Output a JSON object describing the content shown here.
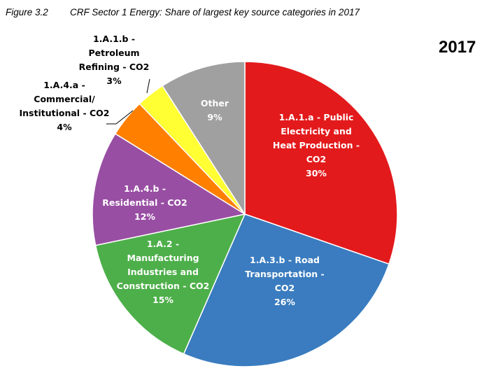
{
  "figure": {
    "number": "Figure 3.2",
    "title": "CRF Sector 1 Energy: Share of largest key source categories in 2017"
  },
  "chart_data": {
    "type": "pie",
    "title": "2017",
    "start_angle_deg": 0,
    "direction": "clockwise",
    "slices": [
      {
        "name": "1.A.1.a - Public Electricity and Heat Production - CO2",
        "value": 30,
        "label": "30%",
        "color": "#e31a1c",
        "label_lines": [
          "1.A.1.a - Public",
          "Electricity and",
          "Heat Production -",
          "CO2"
        ],
        "label_color": "#ffffff",
        "label_placement": "inside"
      },
      {
        "name": "1.A.3.b - Road Transportation - CO2",
        "value": 26,
        "label": "26%",
        "color": "#3a7cbf",
        "label_lines": [
          "1.A.3.b - Road",
          "Transportation -",
          "CO2"
        ],
        "label_color": "#ffffff",
        "label_placement": "inside"
      },
      {
        "name": "1.A.2 - Manufacturing Industries and Construction - CO2",
        "value": 15,
        "label": "15%",
        "color": "#4daf4a",
        "label_lines": [
          "1.A.2 -",
          "Manufacturing",
          "Industries and",
          "Construction - CO2"
        ],
        "label_color": "#ffffff",
        "label_placement": "inside"
      },
      {
        "name": "1.A.4.b - Residential - CO2",
        "value": 12,
        "label": "12%",
        "color": "#984ea3",
        "label_lines": [
          "1.A.4.b -",
          "Residential - CO2"
        ],
        "label_color": "#ffffff",
        "label_placement": "inside"
      },
      {
        "name": "1.A.4.a - Commercial/ Institutional - CO2",
        "value": 4,
        "label": "4%",
        "color": "#ff7f00",
        "label_lines": [
          "1.A.4.a -",
          "Commercial/",
          "Institutional - CO2"
        ],
        "label_color": "#000000",
        "label_placement": "outside"
      },
      {
        "name": "1.A.1.b - Petroleum Refining - CO2",
        "value": 3,
        "label": "3%",
        "color": "#ffff33",
        "label_lines": [
          "1.A.1.b -",
          "Petroleum",
          "Refining - CO2"
        ],
        "label_color": "#000000",
        "label_placement": "outside"
      },
      {
        "name": "Other",
        "value": 9,
        "label": "9%",
        "color": "#a0a0a0",
        "label_lines": [
          "Other"
        ],
        "label_color": "#ffffff",
        "label_placement": "inside"
      }
    ]
  }
}
